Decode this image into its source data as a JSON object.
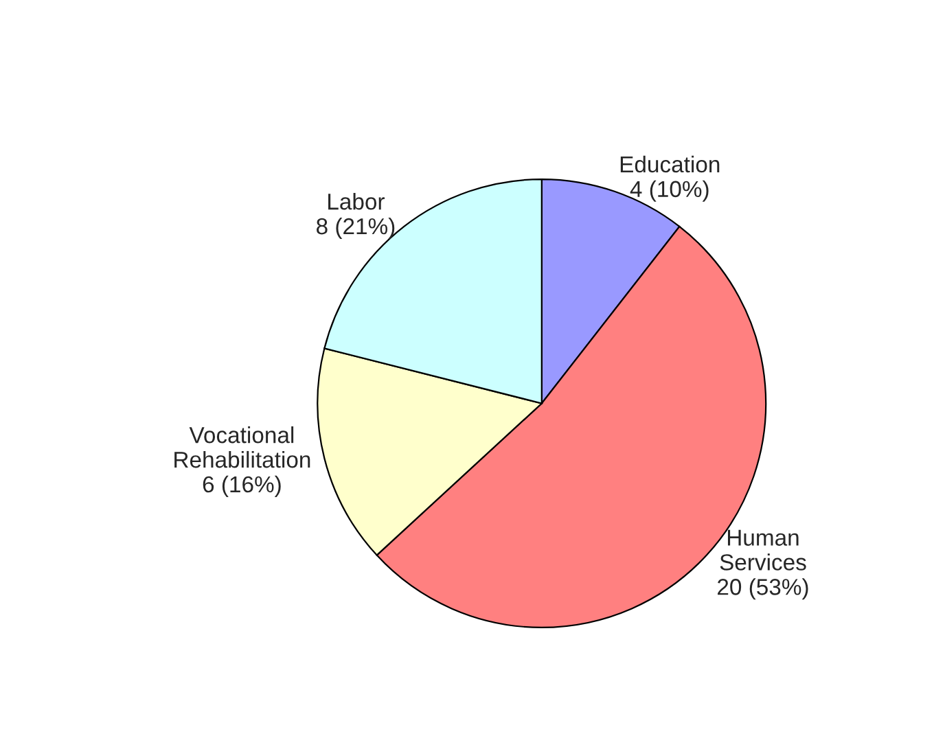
{
  "chart_data": {
    "type": "pie",
    "categories": [
      "Education",
      "Human Services",
      "Vocational Rehabilitation",
      "Labor"
    ],
    "values": [
      4,
      20,
      6,
      8
    ],
    "value_labels": [
      "4 (10%)",
      "20 (53%)",
      "6 (16%)",
      "8 (21%)"
    ],
    "colors": [
      "#9999ff",
      "#ff8080",
      "#ffffcc",
      "#ccffff"
    ]
  }
}
